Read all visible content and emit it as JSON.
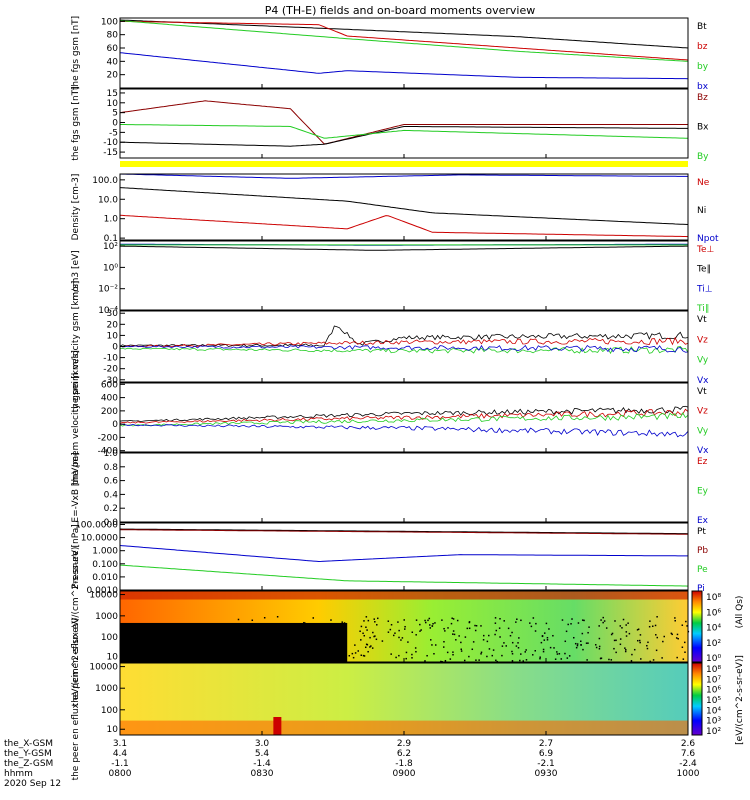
{
  "title": "P4 (TH-E) fields and on-board moments overview",
  "colors": {
    "black": "#000000",
    "red": "#cc0000",
    "green": "#22cc22",
    "blue": "#0000cc",
    "dark_red": "#8b0000",
    "yellow": "#ffff00"
  },
  "chart_data": [
    {
      "type": "line",
      "ylabel": "the fgs gsm [nT]",
      "ylim": [
        0,
        105
      ],
      "yticks": [
        "100",
        "80",
        "60",
        "40",
        "20"
      ],
      "yvals": [
        100,
        80,
        60,
        40,
        20
      ],
      "legend": [
        "Bt",
        "bz",
        "by",
        "bx"
      ],
      "legend_colors": [
        "black",
        "red",
        "green",
        "blue"
      ],
      "series": [
        {
          "name": "Bt",
          "color": "black",
          "x": [
            0,
            0.4,
            0.7,
            1.0
          ],
          "y": [
            102,
            88,
            77,
            60
          ]
        },
        {
          "name": "bz",
          "color": "red",
          "x": [
            0,
            0.35,
            0.4,
            0.7,
            1.0
          ],
          "y": [
            100,
            95,
            78,
            60,
            42
          ]
        },
        {
          "name": "by",
          "color": "green",
          "x": [
            0,
            0.4,
            0.7,
            1.0
          ],
          "y": [
            101,
            74,
            55,
            40
          ]
        },
        {
          "name": "bx",
          "color": "blue",
          "x": [
            0,
            0.35,
            0.4,
            0.7,
            1.0
          ],
          "y": [
            53,
            22,
            26,
            16,
            14
          ]
        }
      ]
    },
    {
      "type": "line",
      "ylabel": "the fgs gsm [nT]",
      "ylim": [
        -18,
        17
      ],
      "yticks": [
        "15",
        "10",
        "5",
        "0",
        "-5",
        "-10",
        "-15"
      ],
      "yvals": [
        15,
        10,
        5,
        0,
        -5,
        -10,
        -15
      ],
      "legend": [
        "Bz",
        "Bx",
        "By"
      ],
      "legend_colors": [
        "dark_red",
        "black",
        "green"
      ],
      "series": [
        {
          "name": "Bz",
          "color": "dark_red",
          "x": [
            0,
            0.15,
            0.3,
            0.36,
            0.5,
            1.0
          ],
          "y": [
            5,
            11,
            7,
            -11,
            -1,
            -1
          ]
        },
        {
          "name": "Bx",
          "color": "black",
          "x": [
            0,
            0.3,
            0.36,
            0.5,
            1.0
          ],
          "y": [
            -10,
            -12,
            -11,
            -2,
            -3
          ]
        },
        {
          "name": "By",
          "color": "green",
          "x": [
            0,
            0.3,
            0.36,
            0.5,
            1.0
          ],
          "y": [
            -1,
            -2,
            -8,
            -4,
            -8
          ]
        }
      ]
    },
    {
      "type": "line",
      "ylabel": "Density [cm-3]",
      "log": true,
      "ylim": [
        0.08,
        200
      ],
      "yticks": [
        "100.0",
        "10.0",
        "1.0",
        "0.1"
      ],
      "yvals": [
        100,
        10,
        1,
        0.1
      ],
      "legend": [
        "Ne",
        "Ni",
        "Npot"
      ],
      "legend_colors": [
        "red",
        "black",
        "blue"
      ],
      "series": [
        {
          "name": "Ni",
          "color": "black",
          "x": [
            0,
            0.4,
            0.55,
            1.0
          ],
          "y": [
            40,
            8,
            2,
            0.5
          ]
        },
        {
          "name": "Ne",
          "color": "red",
          "x": [
            0,
            0.4,
            0.47,
            0.55,
            1.0
          ],
          "y": [
            1.5,
            0.3,
            1.5,
            0.2,
            0.12
          ]
        },
        {
          "name": "Npot",
          "color": "blue",
          "x": [
            0,
            0.3,
            0.6,
            1.0
          ],
          "y": [
            200,
            120,
            180,
            150
          ]
        }
      ]
    },
    {
      "type": "line",
      "ylabel": "mom3 [eV]",
      "log": true,
      "ylim": [
        0.0001,
        300
      ],
      "yticks": [
        "10²",
        "10⁰",
        "10⁻²",
        "10⁻⁴"
      ],
      "yvals": [
        100,
        1,
        0.01,
        0.0001
      ],
      "legend": [
        "Te⊥",
        "Te∥",
        "Ti⊥",
        "Ti∥"
      ],
      "legend_colors": [
        "red",
        "black",
        "blue",
        "green"
      ],
      "series": [
        {
          "name": "Te∥",
          "color": "black",
          "x": [
            0,
            0.45,
            1.0
          ],
          "y": [
            100,
            40,
            100
          ]
        },
        {
          "name": "Ti⊥",
          "color": "blue",
          "x": [
            0,
            0.45,
            1.0
          ],
          "y": [
            150,
            120,
            150
          ]
        },
        {
          "name": "Ti∥",
          "color": "green",
          "x": [
            0,
            1.0
          ],
          "y": [
            130,
            130
          ]
        }
      ]
    },
    {
      "type": "line",
      "ylabel": "the peim velocity gsm [km/s]",
      "ylim": [
        -32,
        32
      ],
      "yticks": [
        "30",
        "20",
        "10",
        "0",
        "-10",
        "-20",
        "-30"
      ],
      "yvals": [
        30,
        20,
        10,
        0,
        -10,
        -20,
        -30
      ],
      "legend": [
        "Vt",
        "Vz",
        "Vy",
        "Vx"
      ],
      "legend_colors": [
        "black",
        "red",
        "green",
        "blue"
      ],
      "series": [
        {
          "name": "Vt",
          "color": "black",
          "x": [
            0,
            0.36,
            0.38,
            0.42,
            0.5,
            1.0
          ],
          "y": [
            1,
            1,
            20,
            2,
            8,
            10
          ]
        },
        {
          "name": "Vz",
          "color": "red",
          "x": [
            0,
            0.5,
            1.0
          ],
          "y": [
            0,
            4,
            5
          ]
        },
        {
          "name": "Vy",
          "color": "green",
          "x": [
            0,
            0.5,
            1.0
          ],
          "y": [
            -2,
            -4,
            -3
          ]
        },
        {
          "name": "Vx",
          "color": "blue",
          "x": [
            0,
            1.0
          ],
          "y": [
            0,
            -2
          ]
        }
      ]
    },
    {
      "type": "line",
      "ylabel": "the peem velocity gsm [km/s]",
      "ylim": [
        -420,
        620
      ],
      "yticks": [
        "600",
        "400",
        "200",
        "0",
        "-200",
        "-400"
      ],
      "yvals": [
        600,
        400,
        200,
        0,
        -200,
        -400
      ],
      "legend": [
        "Vt",
        "Vz",
        "Vy",
        "Vx"
      ],
      "legend_colors": [
        "black",
        "red",
        "green",
        "blue"
      ],
      "series": [
        {
          "name": "Vt",
          "color": "black",
          "x": [
            0,
            0.5,
            1.0
          ],
          "y": [
            40,
            160,
            220
          ]
        },
        {
          "name": "Vz",
          "color": "red",
          "x": [
            0,
            0.5,
            1.0
          ],
          "y": [
            20,
            100,
            180
          ]
        },
        {
          "name": "Vy",
          "color": "green",
          "x": [
            0,
            0.5,
            1.0
          ],
          "y": [
            -20,
            60,
            120
          ]
        },
        {
          "name": "Vx",
          "color": "blue",
          "x": [
            0,
            0.5,
            1.0
          ],
          "y": [
            -10,
            -60,
            -150
          ]
        }
      ]
    },
    {
      "type": "line",
      "ylabel": "E=-VxB [mV/m]",
      "ylim": [
        0,
        1.0
      ],
      "yticks": [
        "1.0",
        "0.8",
        "0.6",
        "0.4",
        "0.2",
        "0.0"
      ],
      "yvals": [
        1.0,
        0.8,
        0.6,
        0.4,
        0.2,
        0.0
      ],
      "legend": [
        "Ez",
        "Ey",
        "Ex"
      ],
      "legend_colors": [
        "red",
        "green",
        "blue"
      ],
      "series": []
    },
    {
      "type": "line",
      "ylabel": "Pressure [nPa]",
      "log": true,
      "ylim": [
        0.001,
        130
      ],
      "yticks": [
        "100.0000",
        "10.0000",
        "1.000",
        "0.100",
        "0.010",
        "0.0010"
      ],
      "yvals": [
        100,
        10,
        1,
        0.1,
        0.01,
        0.001
      ],
      "legend": [
        "Pt",
        "Pb",
        "Pe",
        "Pi"
      ],
      "legend_colors": [
        "black",
        "dark_red",
        "green",
        "blue"
      ],
      "series": [
        {
          "name": "Pt",
          "color": "black",
          "x": [
            0,
            1.0
          ],
          "y": [
            45,
            20
          ]
        },
        {
          "name": "Pb",
          "color": "dark_red",
          "x": [
            0,
            1.0
          ],
          "y": [
            40,
            18
          ]
        },
        {
          "name": "Pi",
          "color": "blue",
          "x": [
            0,
            0.35,
            0.6,
            1.0
          ],
          "y": [
            2.5,
            0.15,
            0.5,
            0.4
          ]
        },
        {
          "name": "Pe",
          "color": "green",
          "x": [
            0,
            0.4,
            1.0
          ],
          "y": [
            0.08,
            0.005,
            0.002
          ]
        }
      ]
    },
    {
      "type": "heatmap",
      "ylabel": "the peir en eflux eV/(cm^2-s-sr-eV)",
      "yticks": [
        "10000",
        "1000",
        "100",
        "10"
      ],
      "colorbar_label": "[eV/(cm^2-s-sr-eV)] (All Qs)",
      "colorbar_ticks": [
        "10⁸",
        "10⁶",
        "10⁴",
        "10²",
        "10⁰"
      ]
    },
    {
      "type": "heatmap",
      "ylabel": "the peer en eflux eV/(cm^2-s-sr-eV)",
      "yticks": [
        "10000",
        "1000",
        "100",
        "10"
      ],
      "colorbar_label": "[eV/(cm^2-s-sr-eV)]",
      "colorbar_ticks": [
        "10⁸",
        "10⁷",
        "10⁶",
        "10⁵",
        "10⁴",
        "10³",
        "10²"
      ]
    }
  ],
  "xaxis": {
    "rows": [
      {
        "label": "the_X-GSM",
        "values": [
          "3.1",
          "3.0",
          "2.9",
          "2.7",
          "2.6"
        ]
      },
      {
        "label": "the_Y-GSM",
        "values": [
          "4.4",
          "5.4",
          "6.2",
          "6.9",
          "7.6"
        ]
      },
      {
        "label": "the_Z-GSM",
        "values": [
          "-1.1",
          "-1.4",
          "-1.8",
          "-2.1",
          "-2.4"
        ]
      },
      {
        "label": "hhmm",
        "values": [
          "0800",
          "0830",
          "0900",
          "0930",
          "1000"
        ]
      }
    ],
    "date": "2020 Sep 12"
  },
  "colorbar_axis_label": "[eV/(cm^2-s-sr-eV)]",
  "colorbar_qs_label": "(All Qs)"
}
